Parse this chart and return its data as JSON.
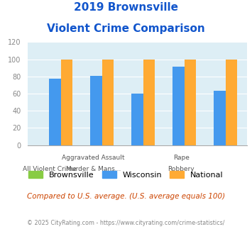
{
  "title_line1": "2019 Brownsville",
  "title_line2": "Violent Crime Comparison",
  "categories": [
    "All Violent Crime",
    "Aggravated Assault",
    "Murder & Mans...",
    "Rape",
    "Robbery"
  ],
  "series": {
    "Brownsville": [
      0,
      0,
      0,
      0,
      0
    ],
    "Wisconsin": [
      77,
      81,
      60,
      91,
      63
    ],
    "National": [
      100,
      100,
      100,
      100,
      100
    ]
  },
  "colors": {
    "Brownsville": "#88cc44",
    "Wisconsin": "#4499ee",
    "National": "#ffaa33"
  },
  "ylim": [
    0,
    120
  ],
  "yticks": [
    0,
    20,
    40,
    60,
    80,
    100,
    120
  ],
  "bg_color": "#ddeef5",
  "title_color": "#1155cc",
  "footer_text": "Compared to U.S. average. (U.S. average equals 100)",
  "copyright_text": "© 2025 CityRating.com - https://www.cityrating.com/crime-statistics/",
  "footer_color": "#cc4400",
  "copyright_color": "#888888",
  "top_labels": [
    "",
    "Aggravated Assault",
    "",
    "Rape",
    ""
  ],
  "bottom_labels": [
    "All Violent Crime",
    "Murder & Mans...",
    "",
    "Robbery",
    ""
  ],
  "bar_width": 0.28
}
